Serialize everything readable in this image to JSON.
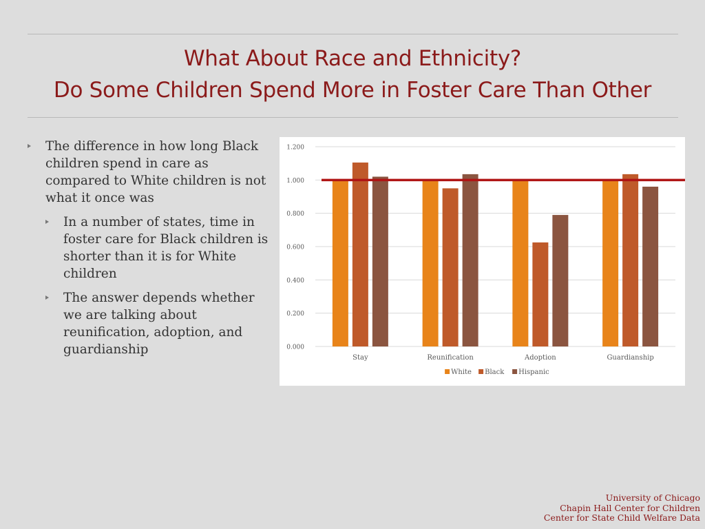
{
  "title": {
    "line1": "What About Race and Ethnicity?",
    "line2": "Do Some Children Spend More in Foster Care Than Other"
  },
  "bullets": {
    "main": "The difference in how long Black children spend in care as compared to White children is not what it once was",
    "sub1": "In a number of states, time in foster care for Black children is shorter than it is for White children",
    "sub2": "The answer depends whether we are talking about reunification, adoption, and guardianship"
  },
  "footer": {
    "line1": "University of Chicago",
    "line2": "Chapin Hall Center for Children",
    "line3": "Center for State Child Welfare Data"
  },
  "chart_data": {
    "type": "bar",
    "categories": [
      "Stay",
      "Reunification",
      "Adoption",
      "Guardianship"
    ],
    "series": [
      {
        "name": "White",
        "color": "#e8841a",
        "values": [
          1.0,
          1.0,
          1.0,
          1.0
        ]
      },
      {
        "name": "Black",
        "color": "#bf5a2a",
        "values": [
          1.105,
          0.95,
          0.625,
          1.035
        ]
      },
      {
        "name": "Hispanic",
        "color": "#8b5540",
        "values": [
          1.02,
          1.035,
          0.79,
          0.96
        ]
      }
    ],
    "ylim": [
      0,
      1.2
    ],
    "yticks": [
      "0.000",
      "0.200",
      "0.400",
      "0.600",
      "0.800",
      "1.000",
      "1.200"
    ],
    "reference_line": {
      "value": 1.0,
      "color": "#b01515"
    },
    "grid": true,
    "legend": "bottom"
  }
}
